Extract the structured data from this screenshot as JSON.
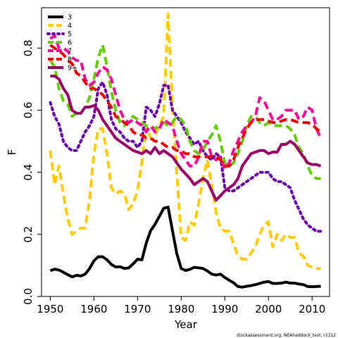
{
  "chart_data": {
    "type": "line",
    "title": "",
    "xlabel": "Year",
    "ylabel": "F",
    "xlim": [
      1948,
      2014
    ],
    "ylim": [
      0,
      0.93
    ],
    "x_ticks": [
      "1950",
      "1960",
      "1970",
      "1980",
      "1990",
      "2000",
      "2010"
    ],
    "y_ticks": [
      "0.0",
      "0.2",
      "0.4",
      "0.6",
      "0.8"
    ],
    "grid": false,
    "legend_position": "top-left",
    "footer": "stockassessment.org, NEAhaddock_test, r2312",
    "series": [
      {
        "name": "3",
        "color": "#000000",
        "dash": "solid",
        "x": [
          1950,
          1951,
          1952,
          1953,
          1954,
          1955,
          1956,
          1957,
          1958,
          1959,
          1960,
          1961,
          1962,
          1963,
          1964,
          1965,
          1966,
          1967,
          1968,
          1969,
          1970,
          1971,
          1972,
          1973,
          1974,
          1975,
          1976,
          1977,
          1978,
          1979,
          1980,
          1981,
          1982,
          1983,
          1984,
          1985,
          1986,
          1987,
          1988,
          1989,
          1990,
          1991,
          1992,
          1993,
          1994,
          1995,
          1996,
          1997,
          1998,
          1999,
          2000,
          2001,
          2002,
          2003,
          2004,
          2005,
          2006,
          2007,
          2008,
          2009,
          2010,
          2011,
          2012
        ],
        "values": [
          0.083,
          0.088,
          0.085,
          0.078,
          0.07,
          0.063,
          0.068,
          0.066,
          0.072,
          0.09,
          0.115,
          0.128,
          0.128,
          0.118,
          0.103,
          0.095,
          0.096,
          0.09,
          0.092,
          0.105,
          0.12,
          0.118,
          0.172,
          0.212,
          0.232,
          0.258,
          0.284,
          0.288,
          0.212,
          0.138,
          0.09,
          0.084,
          0.087,
          0.094,
          0.092,
          0.09,
          0.082,
          0.072,
          0.069,
          0.072,
          0.061,
          0.052,
          0.044,
          0.032,
          0.03,
          0.033,
          0.035,
          0.038,
          0.042,
          0.046,
          0.048,
          0.042,
          0.042,
          0.043,
          0.046,
          0.043,
          0.043,
          0.04,
          0.038,
          0.032,
          0.031,
          0.032,
          0.033
        ]
      },
      {
        "name": "4",
        "color": "#ffcc00",
        "dash": "dashed",
        "x": [
          1950,
          1951,
          1952,
          1953,
          1954,
          1955,
          1956,
          1957,
          1958,
          1959,
          1960,
          1961,
          1962,
          1963,
          1964,
          1965,
          1966,
          1967,
          1968,
          1969,
          1970,
          1971,
          1972,
          1973,
          1974,
          1975,
          1976,
          1977,
          1978,
          1979,
          1980,
          1981,
          1982,
          1983,
          1984,
          1985,
          1986,
          1987,
          1988,
          1989,
          1990,
          1991,
          1992,
          1993,
          1994,
          1995,
          1996,
          1997,
          1998,
          1999,
          2000,
          2001,
          2002,
          2003,
          2004,
          2005,
          2006,
          2007,
          2008,
          2009,
          2010,
          2011,
          2012
        ],
        "values": [
          0.47,
          0.36,
          0.42,
          0.33,
          0.25,
          0.2,
          0.21,
          0.22,
          0.22,
          0.31,
          0.46,
          0.54,
          0.54,
          0.46,
          0.35,
          0.33,
          0.34,
          0.33,
          0.28,
          0.3,
          0.34,
          0.43,
          0.55,
          0.51,
          0.52,
          0.55,
          0.58,
          0.91,
          0.62,
          0.4,
          0.19,
          0.18,
          0.24,
          0.23,
          0.3,
          0.38,
          0.44,
          0.36,
          0.27,
          0.22,
          0.21,
          0.21,
          0.17,
          0.13,
          0.12,
          0.12,
          0.14,
          0.16,
          0.2,
          0.23,
          0.24,
          0.16,
          0.2,
          0.18,
          0.2,
          0.19,
          0.19,
          0.14,
          0.13,
          0.1,
          0.095,
          0.09,
          0.09
        ]
      },
      {
        "name": "5",
        "color": "#6600aa",
        "dash": "dotted",
        "x": [
          1950,
          1951,
          1952,
          1953,
          1954,
          1955,
          1956,
          1957,
          1958,
          1959,
          1960,
          1961,
          1962,
          1963,
          1964,
          1965,
          1966,
          1967,
          1968,
          1969,
          1970,
          1971,
          1972,
          1973,
          1974,
          1975,
          1976,
          1977,
          1978,
          1979,
          1980,
          1981,
          1982,
          1983,
          1984,
          1985,
          1986,
          1987,
          1988,
          1989,
          1990,
          1991,
          1992,
          1993,
          1994,
          1995,
          1996,
          1997,
          1998,
          1999,
          2000,
          2001,
          2002,
          2003,
          2004,
          2005,
          2006,
          2007,
          2008,
          2009,
          2010,
          2011,
          2012
        ],
        "values": [
          0.625,
          0.58,
          0.555,
          0.5,
          0.48,
          0.47,
          0.47,
          0.5,
          0.53,
          0.55,
          0.58,
          0.67,
          0.69,
          0.65,
          0.57,
          0.54,
          0.53,
          0.51,
          0.5,
          0.5,
          0.48,
          0.5,
          0.61,
          0.6,
          0.58,
          0.62,
          0.68,
          0.68,
          0.6,
          0.58,
          0.56,
          0.53,
          0.51,
          0.49,
          0.5,
          0.47,
          0.45,
          0.44,
          0.46,
          0.45,
          0.35,
          0.34,
          0.34,
          0.35,
          0.36,
          0.37,
          0.38,
          0.39,
          0.4,
          0.4,
          0.4,
          0.38,
          0.37,
          0.37,
          0.36,
          0.35,
          0.31,
          0.28,
          0.25,
          0.23,
          0.22,
          0.21,
          0.21
        ]
      },
      {
        "name": "6",
        "color": "#66cc00",
        "dash": "dashed",
        "x": [
          1950,
          1951,
          1952,
          1953,
          1954,
          1955,
          1956,
          1957,
          1958,
          1959,
          1960,
          1961,
          1962,
          1963,
          1964,
          1965,
          1966,
          1967,
          1968,
          1969,
          1970,
          1971,
          1972,
          1973,
          1974,
          1975,
          1976,
          1977,
          1978,
          1979,
          1980,
          1981,
          1982,
          1983,
          1984,
          1985,
          1986,
          1987,
          1988,
          1989,
          1990,
          1991,
          1992,
          1993,
          1994,
          1995,
          1996,
          1997,
          1998,
          1999,
          2000,
          2001,
          2002,
          2003,
          2004,
          2005,
          2006,
          2007,
          2008,
          2009,
          2010,
          2011,
          2012
        ],
        "values": [
          0.76,
          0.74,
          0.67,
          0.63,
          0.62,
          0.58,
          0.59,
          0.59,
          0.61,
          0.64,
          0.7,
          0.77,
          0.81,
          0.74,
          0.66,
          0.6,
          0.56,
          0.55,
          0.57,
          0.58,
          0.57,
          0.56,
          0.55,
          0.55,
          0.54,
          0.55,
          0.56,
          0.55,
          0.56,
          0.58,
          0.57,
          0.55,
          0.5,
          0.47,
          0.46,
          0.47,
          0.5,
          0.52,
          0.55,
          0.5,
          0.43,
          0.42,
          0.43,
          0.46,
          0.5,
          0.55,
          0.58,
          0.58,
          0.56,
          0.55,
          0.56,
          0.55,
          0.55,
          0.55,
          0.55,
          0.54,
          0.52,
          0.48,
          0.46,
          0.42,
          0.39,
          0.38,
          0.38
        ]
      },
      {
        "name": "7",
        "color": "#ff0099",
        "dash": "dashed",
        "x": [
          1950,
          1951,
          1952,
          1953,
          1954,
          1955,
          1956,
          1957,
          1958,
          1959,
          1960,
          1961,
          1962,
          1963,
          1964,
          1965,
          1966,
          1967,
          1968,
          1969,
          1970,
          1971,
          1972,
          1973,
          1974,
          1975,
          1976,
          1977,
          1978,
          1979,
          1980,
          1981,
          1982,
          1983,
          1984,
          1985,
          1986,
          1987,
          1988,
          1989,
          1990,
          1991,
          1992,
          1993,
          1994,
          1995,
          1996,
          1997,
          1998,
          1999,
          2000,
          2001,
          2002,
          2003,
          2004,
          2005,
          2006,
          2007,
          2008,
          2009,
          2010,
          2011,
          2012
        ],
        "values": [
          0.83,
          0.84,
          0.8,
          0.8,
          0.79,
          0.77,
          0.76,
          0.76,
          0.7,
          0.68,
          0.69,
          0.72,
          0.74,
          0.73,
          0.7,
          0.65,
          0.6,
          0.57,
          0.56,
          0.57,
          0.56,
          0.55,
          0.53,
          0.55,
          0.53,
          0.54,
          0.57,
          0.56,
          0.55,
          0.5,
          0.46,
          0.44,
          0.42,
          0.42,
          0.45,
          0.5,
          0.5,
          0.45,
          0.44,
          0.45,
          0.41,
          0.43,
          0.47,
          0.5,
          0.53,
          0.55,
          0.56,
          0.58,
          0.64,
          0.63,
          0.6,
          0.57,
          0.57,
          0.58,
          0.6,
          0.6,
          0.6,
          0.57,
          0.58,
          0.61,
          0.6,
          0.54,
          0.51
        ]
      },
      {
        "name": "8",
        "color": "#ee0000",
        "dash": "dashed",
        "x": [
          1950,
          1951,
          1952,
          1953,
          1954,
          1955,
          1956,
          1957,
          1958,
          1959,
          1960,
          1961,
          1962,
          1963,
          1964,
          1965,
          1966,
          1967,
          1968,
          1969,
          1970,
          1971,
          1972,
          1973,
          1974,
          1975,
          1976,
          1977,
          1978,
          1979,
          1980,
          1981,
          1982,
          1983,
          1984,
          1985,
          1986,
          1987,
          1988,
          1989,
          1990,
          1991,
          1992,
          1993,
          1994,
          1995,
          1996,
          1997,
          1998,
          1999,
          2000,
          2001,
          2002,
          2003,
          2004,
          2005,
          2006,
          2007,
          2008,
          2009,
          2010,
          2011,
          2012
        ],
        "values": [
          0.81,
          0.8,
          0.79,
          0.78,
          0.76,
          0.75,
          0.72,
          0.71,
          0.69,
          0.67,
          0.67,
          0.66,
          0.65,
          0.63,
          0.61,
          0.58,
          0.57,
          0.56,
          0.55,
          0.53,
          0.52,
          0.52,
          0.51,
          0.51,
          0.5,
          0.5,
          0.49,
          0.48,
          0.48,
          0.47,
          0.47,
          0.46,
          0.46,
          0.45,
          0.45,
          0.45,
          0.45,
          0.45,
          0.45,
          0.44,
          0.42,
          0.42,
          0.44,
          0.48,
          0.51,
          0.54,
          0.56,
          0.57,
          0.57,
          0.57,
          0.565,
          0.56,
          0.56,
          0.565,
          0.57,
          0.57,
          0.565,
          0.56,
          0.56,
          0.56,
          0.555,
          0.54,
          0.53
        ]
      },
      {
        "name": "9+",
        "color": "#990066",
        "dash": "solid",
        "x": [
          1950,
          1951,
          1952,
          1953,
          1954,
          1955,
          1956,
          1957,
          1958,
          1959,
          1960,
          1961,
          1962,
          1963,
          1964,
          1965,
          1966,
          1967,
          1968,
          1969,
          1970,
          1971,
          1972,
          1973,
          1974,
          1975,
          1976,
          1977,
          1978,
          1979,
          1980,
          1981,
          1982,
          1983,
          1984,
          1985,
          1986,
          1987,
          1988,
          1989,
          1990,
          1991,
          1992,
          1993,
          1994,
          1995,
          1996,
          1997,
          1998,
          1999,
          2000,
          2001,
          2002,
          2003,
          2004,
          2005,
          2006,
          2007,
          2008,
          2009,
          2010,
          2011,
          2012
        ],
        "values": [
          0.71,
          0.71,
          0.7,
          0.67,
          0.65,
          0.6,
          0.59,
          0.59,
          0.61,
          0.61,
          0.615,
          0.6,
          0.57,
          0.55,
          0.53,
          0.51,
          0.5,
          0.49,
          0.48,
          0.47,
          0.465,
          0.46,
          0.47,
          0.46,
          0.48,
          0.46,
          0.47,
          0.46,
          0.45,
          0.43,
          0.41,
          0.395,
          0.38,
          0.36,
          0.37,
          0.38,
          0.37,
          0.34,
          0.31,
          0.325,
          0.34,
          0.35,
          0.36,
          0.38,
          0.42,
          0.44,
          0.46,
          0.465,
          0.47,
          0.47,
          0.46,
          0.465,
          0.465,
          0.49,
          0.49,
          0.5,
          0.49,
          0.47,
          0.45,
          0.43,
          0.425,
          0.425,
          0.42
        ]
      }
    ]
  }
}
